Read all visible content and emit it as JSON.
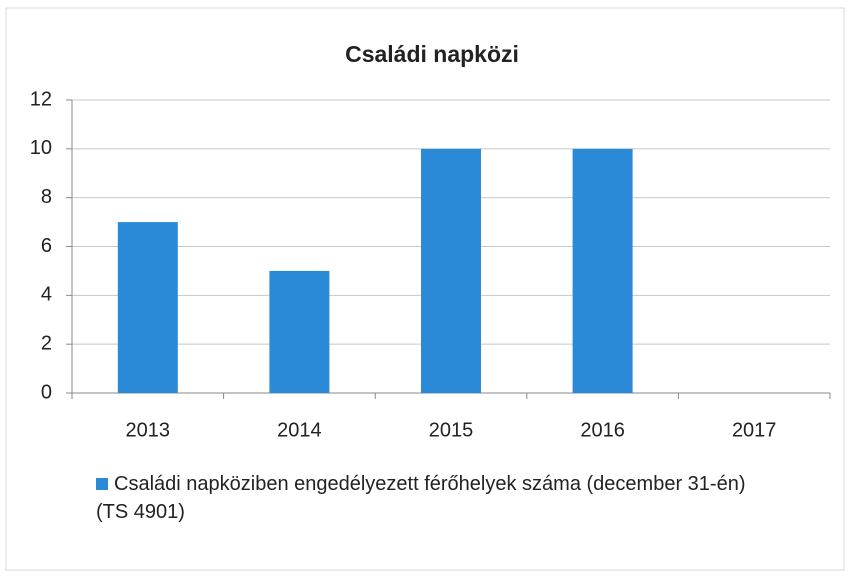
{
  "chart_data": {
    "type": "bar",
    "title": "Családi napközi",
    "categories": [
      "2013",
      "2014",
      "2015",
      "2016",
      "2017"
    ],
    "series": [
      {
        "name": "Családi napköziben engedélyezett férőhelyek száma (december 31-én)\n(TS 4901)",
        "color": "#2a8ad8",
        "values": [
          7,
          5,
          10,
          10,
          null
        ]
      }
    ],
    "ylim": [
      0,
      12
    ],
    "yticks": [
      0,
      2,
      4,
      6,
      8,
      10,
      12
    ],
    "grid": true,
    "legend": "bottom"
  }
}
